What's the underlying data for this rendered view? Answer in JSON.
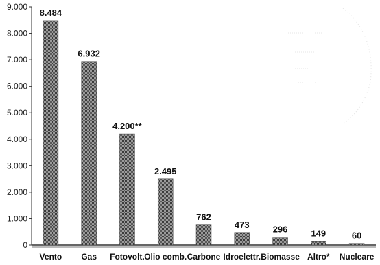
{
  "chart_data": {
    "type": "bar",
    "title": "",
    "xlabel": "",
    "ylabel": "",
    "categories": [
      "Vento",
      "Gas",
      "Fotovolt.",
      "Olio comb.",
      "Carbone",
      "Idroelettr.",
      "Biomasse",
      "Altro*",
      "Nucleare"
    ],
    "values": [
      8484,
      6932,
      4200,
      2495,
      762,
      473,
      296,
      149,
      60
    ],
    "value_labels": [
      "8.484",
      "6.932",
      "4.200**",
      "2.495",
      "762",
      "473",
      "296",
      "149",
      "60"
    ],
    "ylim": [
      0,
      9000
    ],
    "y_ticks": [
      0,
      1000,
      2000,
      3000,
      4000,
      5000,
      6000,
      7000,
      8000,
      9000
    ],
    "y_tick_labels": [
      "0",
      "1.000",
      "2.000",
      "3.000",
      "4.000",
      "5.000",
      "6.000",
      "7.000",
      "8.000",
      "9.000"
    ],
    "grid": false,
    "bar_color": "#7a7a7a",
    "bar_pattern": "dotted-halftone"
  }
}
